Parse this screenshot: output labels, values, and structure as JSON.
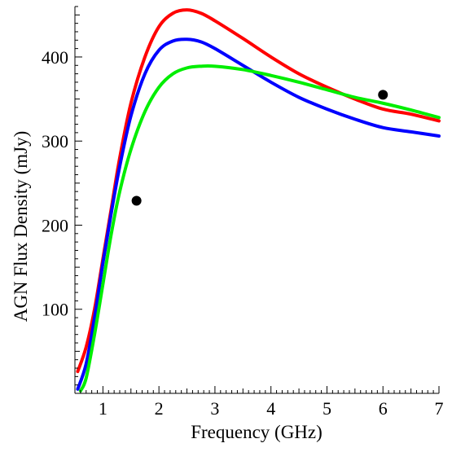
{
  "chart_data": {
    "type": "line",
    "title": "",
    "xlabel": "Frequency (GHz)",
    "ylabel": "AGN Flux Density (mJy)",
    "xlim": [
      0.5,
      7
    ],
    "ylim": [
      0,
      460
    ],
    "x_ticks": [
      1,
      2,
      3,
      4,
      5,
      6,
      7
    ],
    "y_ticks": [
      100,
      200,
      300,
      400
    ],
    "grid": false,
    "legend": "none",
    "series": [
      {
        "color": "#ff0000",
        "x": [
          0.55,
          0.7,
          0.85,
          1.0,
          1.15,
          1.3,
          1.5,
          1.75,
          2.0,
          2.25,
          2.5,
          2.75,
          3.0,
          3.5,
          4.0,
          4.5,
          5.0,
          5.5,
          6.0,
          6.5,
          7.0
        ],
        "y": [
          26,
          55,
          100,
          160,
          220,
          280,
          345,
          400,
          436,
          452,
          456,
          452,
          443,
          422,
          400,
          380,
          364,
          350,
          338,
          332,
          324
        ]
      },
      {
        "color": "#0000ff",
        "x": [
          0.55,
          0.7,
          0.85,
          1.0,
          1.15,
          1.3,
          1.5,
          1.75,
          2.0,
          2.25,
          2.5,
          2.75,
          3.0,
          3.5,
          4.0,
          4.5,
          5.0,
          5.5,
          6.0,
          6.5,
          7.0
        ],
        "y": [
          5,
          35,
          90,
          155,
          215,
          270,
          330,
          380,
          408,
          419,
          421,
          418,
          410,
          390,
          370,
          352,
          338,
          326,
          316,
          311,
          306
        ]
      },
      {
        "color": "#00ee00",
        "x": [
          0.6,
          0.7,
          0.85,
          1.0,
          1.15,
          1.3,
          1.5,
          1.75,
          2.0,
          2.25,
          2.5,
          2.75,
          3.0,
          3.5,
          4.0,
          4.5,
          5.0,
          5.5,
          6.0,
          6.5,
          7.0
        ],
        "y": [
          3,
          18,
          70,
          130,
          190,
          240,
          290,
          335,
          364,
          380,
          387,
          389,
          389,
          385,
          378,
          370,
          361,
          352,
          345,
          337,
          328
        ]
      }
    ],
    "points": [
      {
        "x": 1.6,
        "y": 229,
        "color": "#000000"
      },
      {
        "x": 6.0,
        "y": 355,
        "color": "#000000"
      }
    ]
  }
}
